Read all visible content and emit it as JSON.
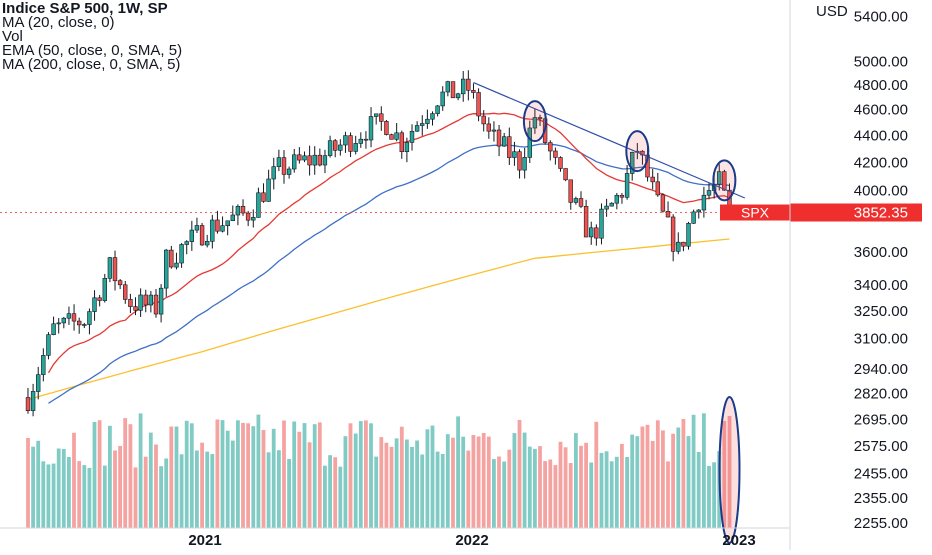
{
  "legend": {
    "title": "Indice S&P 500, 1W, SP",
    "ma20": "MA (20, close, 0)",
    "vol": "Vol",
    "ema50": "EMA (50, close, 0, SMA, 5)",
    "ma200": "MA (200, close, 0, SMA, 5)"
  },
  "price_tag": {
    "symbol": "SPX",
    "value": "3852.35"
  },
  "colors": {
    "up": "#26a69a",
    "down": "#ef5350",
    "vol_up": "#80cbc4",
    "vol_down": "#f4a3a1",
    "ma20": "#e53935",
    "ema50": "#3f6fc7",
    "ma200": "#fbc02d",
    "annotation": "#1a3a8a",
    "trendline": "#2f4fa8",
    "price_tag": "#ef2e2e"
  },
  "chart_data": {
    "type": "candlestick",
    "currency": "USD",
    "y_scale": "log",
    "ylim": [
      2255,
      5700
    ],
    "x_ticks": [
      {
        "label": "2021",
        "date": "2021-01-01"
      },
      {
        "label": "2022",
        "date": "2022-01-01"
      },
      {
        "label": "2023",
        "date": "2023-01-01"
      }
    ],
    "y_ticks": [
      "5400.00",
      "5000.00",
      "4800.00",
      "4600.00",
      "4400.00",
      "4200.00",
      "4000.00",
      "3600.00",
      "3400.00",
      "3250.00",
      "3100.00",
      "2940.00",
      "2820.00",
      "2695.00",
      "2575.00",
      "2455.00",
      "2355.00",
      "2255.00"
    ],
    "price_path": [
      {
        "date": "2020-05-04",
        "close": 2800
      },
      {
        "date": "2020-06-08",
        "close": 3150
      },
      {
        "date": "2020-07-20",
        "close": 3200
      },
      {
        "date": "2020-08-24",
        "close": 3500
      },
      {
        "date": "2020-09-21",
        "close": 3300
      },
      {
        "date": "2020-10-26",
        "close": 3270
      },
      {
        "date": "2020-11-09",
        "close": 3550
      },
      {
        "date": "2021-01-04",
        "close": 3750
      },
      {
        "date": "2021-03-01",
        "close": 3850
      },
      {
        "date": "2021-04-12",
        "close": 4150
      },
      {
        "date": "2021-06-14",
        "close": 4250
      },
      {
        "date": "2021-08-09",
        "close": 4450
      },
      {
        "date": "2021-09-06",
        "close": 4500
      },
      {
        "date": "2021-09-27",
        "close": 4350
      },
      {
        "date": "2021-11-15",
        "close": 4700
      },
      {
        "date": "2021-12-27",
        "close": 4770
      },
      {
        "date": "2022-01-24",
        "close": 4400
      },
      {
        "date": "2022-03-07",
        "close": 4200
      },
      {
        "date": "2022-03-28",
        "close": 4550
      },
      {
        "date": "2022-05-09",
        "close": 4000
      },
      {
        "date": "2022-06-13",
        "close": 3700
      },
      {
        "date": "2022-07-25",
        "close": 4000
      },
      {
        "date": "2022-08-15",
        "close": 4300
      },
      {
        "date": "2022-09-12",
        "close": 3900
      },
      {
        "date": "2022-10-10",
        "close": 3600
      },
      {
        "date": "2022-11-07",
        "close": 3950
      },
      {
        "date": "2022-12-05",
        "close": 4050
      },
      {
        "date": "2022-12-19",
        "close": 3852.35
      }
    ],
    "last_close": 3852.35,
    "series": [
      {
        "name": "MA (20, close, 0)",
        "color": "#e53935"
      },
      {
        "name": "EMA (50, close, 0, SMA, 5)",
        "color": "#3f6fc7"
      },
      {
        "name": "MA (200, close, 0, SMA, 5)",
        "color": "#fbc02d"
      }
    ],
    "ma200_path": [
      {
        "date": "2020-05-04",
        "value": 2790
      },
      {
        "date": "2020-12-28",
        "value": 3030
      },
      {
        "date": "2021-08-02",
        "value": 3280
      },
      {
        "date": "2022-03-28",
        "value": 3560
      },
      {
        "date": "2022-12-19",
        "value": 3680
      }
    ],
    "trendline": [
      {
        "date": "2022-01-03",
        "value": 4820
      },
      {
        "date": "2023-01-09",
        "value": 3950
      }
    ],
    "highlights": [
      "2022-03-28",
      "2022-08-15",
      "2022-12-12",
      "volume-2022-12-19"
    ]
  }
}
